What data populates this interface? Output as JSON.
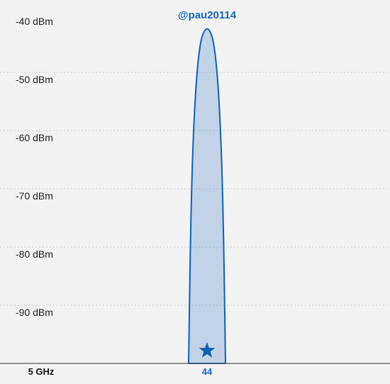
{
  "chart_data": {
    "type": "area",
    "band_label": "5 GHz",
    "y_ticks": [
      "-40 dBm",
      "-50 dBm",
      "-60 dBm",
      "-70 dBm",
      "-80 dBm",
      "-90 dBm"
    ],
    "y_tick_values": [
      -40,
      -50,
      -60,
      -70,
      -80,
      -90
    ],
    "ylim": [
      -100,
      -40
    ],
    "x_ticks": [
      "44"
    ],
    "grid": true,
    "series": [
      {
        "name": "@pau20114",
        "channel": 44,
        "signal_dbm": -41,
        "color": "#1565c0",
        "marker": "star"
      }
    ]
  }
}
